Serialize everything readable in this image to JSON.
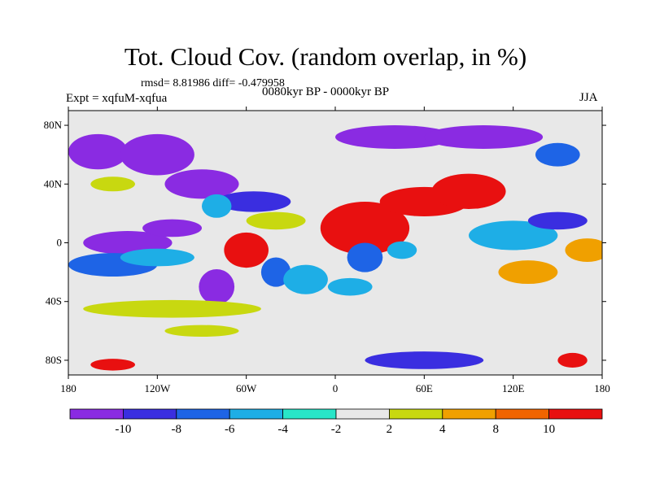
{
  "chart_data": {
    "type": "heatmap",
    "title": "Tot. Cloud Cov. (random overlap, in %)",
    "stats_line": "rmsd= 8.81986 diff= -0.479958",
    "experiment_label": "Expt = xqfuM-xqfua",
    "period_label": "0080kyr BP - 0000kyr BP",
    "season_label": "JJA",
    "x_range": [
      -180,
      180
    ],
    "y_range": [
      -90,
      90
    ],
    "x_ticks": [
      {
        "value": -180,
        "label": "180"
      },
      {
        "value": -120,
        "label": "120W"
      },
      {
        "value": -60,
        "label": "60W"
      },
      {
        "value": 0,
        "label": "0"
      },
      {
        "value": 60,
        "label": "60E"
      },
      {
        "value": 120,
        "label": "120E"
      },
      {
        "value": 180,
        "label": "180"
      }
    ],
    "y_ticks": [
      {
        "value": 80,
        "label": "80N"
      },
      {
        "value": 40,
        "label": "40N"
      },
      {
        "value": 0,
        "label": "0"
      },
      {
        "value": -40,
        "label": "40S"
      },
      {
        "value": -80,
        "label": "80S"
      }
    ],
    "colorbar": {
      "levels": [
        -10,
        -8,
        -6,
        -4,
        -2,
        2,
        4,
        8,
        10
      ],
      "labels": [
        "-10",
        "-8",
        "-6",
        "-4",
        "-2",
        "2",
        "4",
        "8",
        "10"
      ],
      "colors": [
        "#8a2be2",
        "#3a2ee0",
        "#1e64e6",
        "#1eaee6",
        "#28e6c8",
        "#e8e8e8",
        "#c8d810",
        "#f0a000",
        "#f06400",
        "#e81010"
      ]
    },
    "anomaly_blobs": [
      {
        "lon": -140,
        "lat": 0,
        "rlon": 30,
        "rlat": 8,
        "value": -11
      },
      {
        "lon": -110,
        "lat": 10,
        "rlon": 20,
        "rlat": 6,
        "value": -11
      },
      {
        "lon": -150,
        "lat": -15,
        "rlon": 30,
        "rlat": 8,
        "value": -7
      },
      {
        "lon": -120,
        "lat": -10,
        "rlon": 25,
        "rlat": 6,
        "value": -5
      },
      {
        "lon": -160,
        "lat": 62,
        "rlon": 20,
        "rlat": 12,
        "value": -11
      },
      {
        "lon": -120,
        "lat": 60,
        "rlon": 25,
        "rlat": 14,
        "value": -11
      },
      {
        "lon": -90,
        "lat": 40,
        "rlon": 25,
        "rlat": 10,
        "value": -11
      },
      {
        "lon": -55,
        "lat": 28,
        "rlon": 25,
        "rlat": 7,
        "value": -9
      },
      {
        "lon": -80,
        "lat": 25,
        "rlon": 10,
        "rlat": 8,
        "value": -5
      },
      {
        "lon": -40,
        "lat": 15,
        "rlon": 20,
        "rlat": 6,
        "value": 3
      },
      {
        "lon": -60,
        "lat": -5,
        "rlon": 15,
        "rlat": 12,
        "value": 11
      },
      {
        "lon": -40,
        "lat": -20,
        "rlon": 10,
        "rlat": 10,
        "value": -7
      },
      {
        "lon": -80,
        "lat": -30,
        "rlon": 12,
        "rlat": 12,
        "value": -11
      },
      {
        "lon": -20,
        "lat": -25,
        "rlon": 15,
        "rlat": 10,
        "value": -5
      },
      {
        "lon": -110,
        "lat": -45,
        "rlon": 60,
        "rlat": 6,
        "value": 3
      },
      {
        "lon": 20,
        "lat": 10,
        "rlon": 30,
        "rlat": 18,
        "value": 11
      },
      {
        "lon": 60,
        "lat": 28,
        "rlon": 30,
        "rlat": 10,
        "value": 11
      },
      {
        "lon": 90,
        "lat": 35,
        "rlon": 25,
        "rlat": 12,
        "value": 11
      },
      {
        "lon": 20,
        "lat": -10,
        "rlon": 12,
        "rlat": 10,
        "value": -7
      },
      {
        "lon": 45,
        "lat": -5,
        "rlon": 10,
        "rlat": 6,
        "value": -5
      },
      {
        "lon": 10,
        "lat": -30,
        "rlon": 15,
        "rlat": 6,
        "value": -5
      },
      {
        "lon": 120,
        "lat": 5,
        "rlon": 30,
        "rlat": 10,
        "value": -5
      },
      {
        "lon": 150,
        "lat": 15,
        "rlon": 20,
        "rlat": 6,
        "value": -9
      },
      {
        "lon": 170,
        "lat": -5,
        "rlon": 15,
        "rlat": 8,
        "value": 5
      },
      {
        "lon": 130,
        "lat": -20,
        "rlon": 20,
        "rlat": 8,
        "value": 5
      },
      {
        "lon": 40,
        "lat": 72,
        "rlon": 40,
        "rlat": 8,
        "value": -11
      },
      {
        "lon": 100,
        "lat": 72,
        "rlon": 40,
        "rlat": 8,
        "value": -11
      },
      {
        "lon": 150,
        "lat": 60,
        "rlon": 15,
        "rlat": 8,
        "value": -7
      },
      {
        "lon": -150,
        "lat": 40,
        "rlon": 15,
        "rlat": 5,
        "value": 3
      },
      {
        "lon": -90,
        "lat": -60,
        "rlon": 25,
        "rlat": 4,
        "value": 3
      },
      {
        "lon": -150,
        "lat": -83,
        "rlon": 15,
        "rlat": 4,
        "value": 11
      },
      {
        "lon": 60,
        "lat": -80,
        "rlon": 40,
        "rlat": 6,
        "value": -9
      },
      {
        "lon": 160,
        "lat": -80,
        "rlon": 10,
        "rlat": 5,
        "value": 11
      }
    ]
  }
}
